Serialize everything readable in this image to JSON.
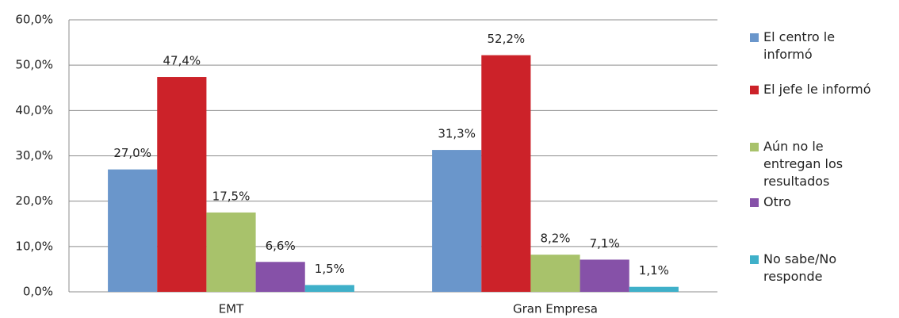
{
  "chart_data": {
    "type": "bar",
    "categories": [
      "EMT",
      "Gran Empresa"
    ],
    "series": [
      {
        "name": "El centro le informó",
        "color": "#6a96cb",
        "values": [
          27.0,
          31.3
        ],
        "value_labels": [
          "27,0%",
          "31,3%"
        ]
      },
      {
        "name": "El jefe le informó",
        "color": "#cc2229",
        "values": [
          47.4,
          52.2
        ],
        "value_labels": [
          "47,4%",
          "52,2%"
        ]
      },
      {
        "name": "Aún no le entregan los resultados",
        "color": "#a8c26b",
        "values": [
          17.5,
          8.2
        ],
        "value_labels": [
          "17,5%",
          "8,2%"
        ]
      },
      {
        "name": "Otro",
        "color": "#8651a8",
        "values": [
          6.6,
          7.1
        ],
        "value_labels": [
          "6,6%",
          "7,1%"
        ]
      },
      {
        "name": "No sabe/No responde",
        "color": "#3fb0c9",
        "values": [
          1.5,
          1.1
        ],
        "value_labels": [
          "1,5%",
          "1,1%"
        ]
      }
    ],
    "ylim": [
      0,
      60
    ],
    "yticks": [
      {
        "value": 0,
        "label": "0,0%"
      },
      {
        "value": 10,
        "label": "10,0%"
      },
      {
        "value": 20,
        "label": "20,0%"
      },
      {
        "value": 30,
        "label": "30,0%"
      },
      {
        "value": 40,
        "label": "40,0%"
      },
      {
        "value": 50,
        "label": "50,0%"
      },
      {
        "value": 60,
        "label": "60,0%"
      }
    ],
    "grid": true
  }
}
